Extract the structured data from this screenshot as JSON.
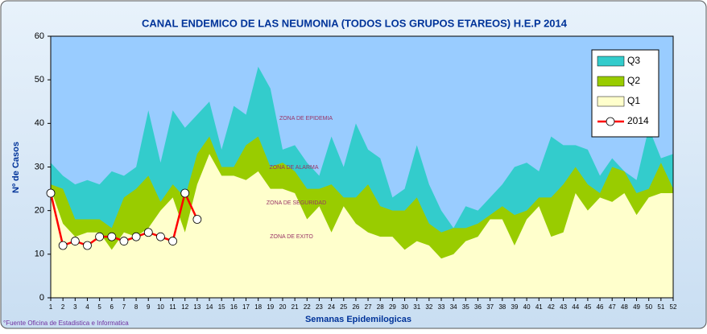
{
  "chart_data": {
    "type": "area",
    "title": "CANAL ENDEMICO DE LAS NEUMONIA (TODOS LOS GRUPOS ETAREOS)  H.E.P 2014",
    "x_label": "Semanas Epidemilogicas",
    "y_label": "Nº de Casos",
    "source": "°Fuente Oficina de Estadistica e Informatica",
    "annotations": [
      "ZONA DE EPIDEMIA",
      "ZONA DE ALARMA",
      "ZONA DE SEGURIDAD",
      "ZONA DE EXITO"
    ],
    "categories": [
      "1",
      "2",
      "3",
      "4",
      "5",
      "6",
      "7",
      "8",
      "9",
      "10",
      "11",
      "12",
      "13",
      "14",
      "15",
      "16",
      "17",
      "18",
      "19",
      "20",
      "21",
      "22",
      "23",
      "24",
      "25",
      "26",
      "27",
      "28",
      "29",
      "30",
      "31",
      "32",
      "33",
      "34",
      "35",
      "36",
      "37",
      "38",
      "39",
      "40",
      "41",
      "42",
      "43",
      "44",
      "45",
      "46",
      "47",
      "48",
      "49",
      "50",
      "51",
      "52"
    ],
    "ylim": [
      0,
      60
    ],
    "yticks": [
      0,
      10,
      20,
      30,
      40,
      50,
      60
    ],
    "legend": "upper right",
    "background": "#99ccff",
    "series": [
      {
        "name": "Q3",
        "color": "#33cccc",
        "values": [
          31,
          28,
          26,
          27,
          26,
          29,
          28,
          30,
          43,
          31,
          43,
          39,
          42,
          45,
          34,
          44,
          42,
          53,
          48,
          34,
          35,
          31,
          28,
          37,
          30,
          40,
          34,
          32,
          23,
          25,
          35,
          26,
          20,
          16,
          21,
          20,
          23,
          26,
          30,
          31,
          29,
          37,
          35,
          35,
          34,
          28,
          32,
          29,
          27,
          39,
          32,
          33
        ]
      },
      {
        "name": "Q2",
        "color": "#99cc00",
        "values": [
          26,
          25,
          18,
          18,
          18,
          16,
          23,
          25,
          28,
          22,
          26,
          23,
          33,
          37,
          30,
          30,
          35,
          37,
          30,
          31,
          29,
          25,
          25,
          26,
          23,
          23,
          26,
          21,
          20,
          20,
          23,
          17,
          15,
          16,
          16,
          17,
          19,
          21,
          19,
          20,
          23,
          23,
          26,
          30,
          26,
          24,
          30,
          29,
          24,
          25,
          31,
          25
        ]
      },
      {
        "name": "Q1",
        "color": "#ffffcc",
        "values": [
          25,
          17,
          14,
          15,
          15,
          11,
          15,
          14,
          16,
          20,
          23,
          15,
          26,
          33,
          28,
          28,
          27,
          29,
          25,
          25,
          24,
          18,
          21,
          15,
          21,
          17,
          15,
          14,
          14,
          11,
          13,
          12,
          9,
          10,
          13,
          14,
          18,
          18,
          12,
          18,
          21,
          14,
          15,
          24,
          20,
          23,
          22,
          24,
          19,
          23,
          24,
          24
        ]
      },
      {
        "name": "2014",
        "color": "#ff0000",
        "type": "line",
        "values": [
          24,
          12,
          13,
          12,
          14,
          14,
          13,
          14,
          15,
          14,
          13,
          24,
          18,
          null,
          null,
          null,
          null,
          null,
          null,
          null,
          null,
          null,
          null,
          null,
          null,
          null,
          null,
          null,
          null,
          null,
          null,
          null,
          null,
          null,
          null,
          null,
          null,
          null,
          null,
          null,
          null,
          null,
          null,
          null,
          null,
          null,
          null,
          null,
          null,
          null,
          null,
          null
        ]
      }
    ]
  }
}
